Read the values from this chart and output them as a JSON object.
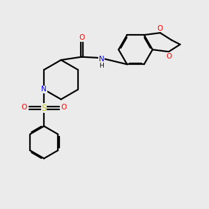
{
  "bg_color": "#ebebeb",
  "bond_color": "#000000",
  "N_color": "#0000ff",
  "O_color": "#ff0000",
  "S_color": "#cccc00",
  "line_width": 1.6,
  "dbo": 0.055,
  "xlim": [
    0,
    10
  ],
  "ylim": [
    0,
    10
  ]
}
